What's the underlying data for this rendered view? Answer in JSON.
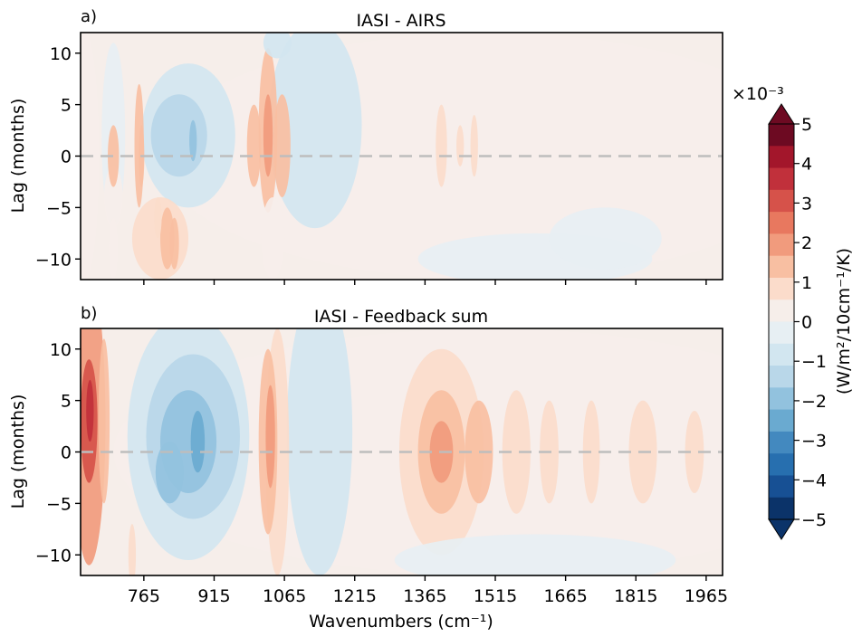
{
  "panels": [
    {
      "label": "a)",
      "title": "IASI - AIRS",
      "ylabel": "Lag (months)",
      "xlabel": "",
      "show_xticklabels": false
    },
    {
      "label": "b)",
      "title": "IASI - Feedback sum",
      "ylabel": "Lag (months)",
      "xlabel": "Wavenumbers (cm⁻¹)",
      "show_xticklabels": true
    }
  ],
  "colorbar": {
    "label": "(W/m²/10cm⁻¹/K)",
    "multiplier": "×10⁻³",
    "ticks": [
      "5",
      "4",
      "3",
      "2",
      "1",
      "0",
      "−1",
      "−2",
      "−3",
      "−4",
      "−5"
    ],
    "levels_top_to_bottom": [
      "#6d0a22",
      "#a3162b",
      "#c1303b",
      "#d6524a",
      "#e8785f",
      "#f19b7d",
      "#f8bfa2",
      "#fbdccb",
      "#f6eeea",
      "#e7eff3",
      "#d2e6f0",
      "#b9d7e9",
      "#92c2de",
      "#6aaad0",
      "#4389bf",
      "#276faf",
      "#175094",
      "#0b3369"
    ],
    "extend": "both",
    "range": [
      -5,
      5
    ]
  },
  "chart_data": [
    {
      "type": "heatmap",
      "title": "IASI - AIRS",
      "xlabel": "",
      "ylabel": "Lag (months)",
      "xlim": [
        630,
        2000
      ],
      "ylim": [
        -12,
        12
      ],
      "x_ticks": [
        765,
        915,
        1065,
        1215,
        1365,
        1515,
        1665,
        1815,
        1965
      ],
      "y_ticks": [
        10,
        5,
        0,
        -5,
        -10
      ],
      "zero_line": 0,
      "blobs": [
        {
          "x": 640,
          "y": 0,
          "rx": 30,
          "ry": 12,
          "v": 0.5
        },
        {
          "x": 700,
          "y": 2,
          "rx": 25,
          "ry": 9,
          "v": -0.5
        },
        {
          "x": 700,
          "y": -4,
          "rx": 20,
          "ry": 3,
          "v": 0.5
        },
        {
          "x": 700,
          "y": -9,
          "rx": 10,
          "ry": 3,
          "v": 0.5
        },
        {
          "x": 700,
          "y": 0,
          "rx": 12,
          "ry": 3,
          "v": 1.2
        },
        {
          "x": 755,
          "y": 1,
          "rx": 10,
          "ry": 6,
          "v": 1.3
        },
        {
          "x": 760,
          "y": 0,
          "rx": 6,
          "ry": 3,
          "v": 1.6
        },
        {
          "x": 860,
          "y": 2,
          "rx": 100,
          "ry": 7,
          "v": -0.9
        },
        {
          "x": 840,
          "y": 2,
          "rx": 60,
          "ry": 4,
          "v": -1.4
        },
        {
          "x": 870,
          "y": 1.5,
          "rx": 8,
          "ry": 2,
          "v": -2.0
        },
        {
          "x": 800,
          "y": -8,
          "rx": 60,
          "ry": 4,
          "v": 0.6
        },
        {
          "x": 815,
          "y": -8,
          "rx": 15,
          "ry": 3,
          "v": 1.2
        },
        {
          "x": 830,
          "y": -8.5,
          "rx": 10,
          "ry": 2.5,
          "v": 1.2
        },
        {
          "x": 795,
          "y": -6,
          "rx": 8,
          "ry": 2,
          "v": 1.0
        },
        {
          "x": 1030,
          "y": 2.5,
          "rx": 20,
          "ry": 8,
          "v": 1.6
        },
        {
          "x": 1030,
          "y": 2,
          "rx": 10,
          "ry": 4,
          "v": 2.0
        },
        {
          "x": 1000,
          "y": 1,
          "rx": 15,
          "ry": 4,
          "v": 1.4
        },
        {
          "x": 1060,
          "y": 1,
          "rx": 18,
          "ry": 5,
          "v": 1.4
        },
        {
          "x": 1040,
          "y": -8,
          "rx": 25,
          "ry": 4,
          "v": 0.4
        },
        {
          "x": 1130,
          "y": 3,
          "rx": 100,
          "ry": 10,
          "v": -0.6
        },
        {
          "x": 1050,
          "y": 11,
          "rx": 30,
          "ry": 1.5,
          "v": -0.7
        },
        {
          "x": 1400,
          "y": 1,
          "rx": 12,
          "ry": 4,
          "v": 1.1
        },
        {
          "x": 1440,
          "y": 1,
          "rx": 8,
          "ry": 2,
          "v": 0.9
        },
        {
          "x": 1470,
          "y": 1,
          "rx": 8,
          "ry": 3,
          "v": 0.9
        },
        {
          "x": 1600,
          "y": -10,
          "rx": 250,
          "ry": 2.5,
          "v": -0.5
        },
        {
          "x": 1750,
          "y": -8,
          "rx": 120,
          "ry": 3,
          "v": -0.5
        },
        {
          "x": 1500,
          "y": 0,
          "rx": 700,
          "ry": 12,
          "v": 0.45
        }
      ]
    },
    {
      "type": "heatmap",
      "title": "IASI - Feedback sum",
      "xlabel": "Wavenumbers (cm⁻¹)",
      "ylabel": "Lag (months)",
      "xlim": [
        630,
        2000
      ],
      "ylim": [
        -12,
        12
      ],
      "x_ticks": [
        765,
        915,
        1065,
        1215,
        1365,
        1515,
        1665,
        1815,
        1965
      ],
      "y_ticks": [
        10,
        5,
        0,
        -5,
        -10
      ],
      "zero_line": 0,
      "blobs": [
        {
          "x": 648,
          "y": 3,
          "rx": 35,
          "ry": 14,
          "v": 1.8
        },
        {
          "x": 648,
          "y": 3,
          "rx": 18,
          "ry": 6,
          "v": 3.2
        },
        {
          "x": 650,
          "y": 4,
          "rx": 8,
          "ry": 3,
          "v": 3.6
        },
        {
          "x": 680,
          "y": 3,
          "rx": 12,
          "ry": 8,
          "v": 1.2
        },
        {
          "x": 860,
          "y": 1.5,
          "rx": 130,
          "ry": 12,
          "v": -1.0
        },
        {
          "x": 870,
          "y": 1.5,
          "rx": 100,
          "ry": 8,
          "v": -1.4
        },
        {
          "x": 860,
          "y": 1,
          "rx": 60,
          "ry": 5,
          "v": -1.8
        },
        {
          "x": 880,
          "y": 1,
          "rx": 15,
          "ry": 3,
          "v": -2.3
        },
        {
          "x": 820,
          "y": -2,
          "rx": 30,
          "ry": 3,
          "v": -2.0
        },
        {
          "x": 1030,
          "y": 1,
          "rx": 20,
          "ry": 9,
          "v": 1.5
        },
        {
          "x": 1035,
          "y": 1.5,
          "rx": 10,
          "ry": 5,
          "v": 2.2
        },
        {
          "x": 1050,
          "y": 0,
          "rx": 25,
          "ry": 12,
          "v": 0.7
        },
        {
          "x": 1140,
          "y": 2,
          "rx": 70,
          "ry": 14,
          "v": -0.6
        },
        {
          "x": 1400,
          "y": 0,
          "rx": 90,
          "ry": 10,
          "v": 1.1
        },
        {
          "x": 1400,
          "y": 0,
          "rx": 50,
          "ry": 6,
          "v": 1.6
        },
        {
          "x": 1400,
          "y": 0,
          "rx": 25,
          "ry": 3,
          "v": 2.0
        },
        {
          "x": 1480,
          "y": 0,
          "rx": 30,
          "ry": 5,
          "v": 1.2
        },
        {
          "x": 1560,
          "y": 0,
          "rx": 30,
          "ry": 6,
          "v": 1.0
        },
        {
          "x": 1630,
          "y": 0,
          "rx": 20,
          "ry": 5,
          "v": 0.9
        },
        {
          "x": 1720,
          "y": 0,
          "rx": 18,
          "ry": 5,
          "v": 0.9
        },
        {
          "x": 1830,
          "y": 0,
          "rx": 30,
          "ry": 5,
          "v": 0.9
        },
        {
          "x": 1940,
          "y": 0,
          "rx": 20,
          "ry": 4,
          "v": 0.9
        },
        {
          "x": 1600,
          "y": -10.5,
          "rx": 300,
          "ry": 2.5,
          "v": -0.5
        },
        {
          "x": 740,
          "y": -10,
          "rx": 8,
          "ry": 3,
          "v": 0.6
        },
        {
          "x": 1500,
          "y": 0,
          "rx": 800,
          "ry": 12,
          "v": 0.4
        }
      ]
    }
  ]
}
